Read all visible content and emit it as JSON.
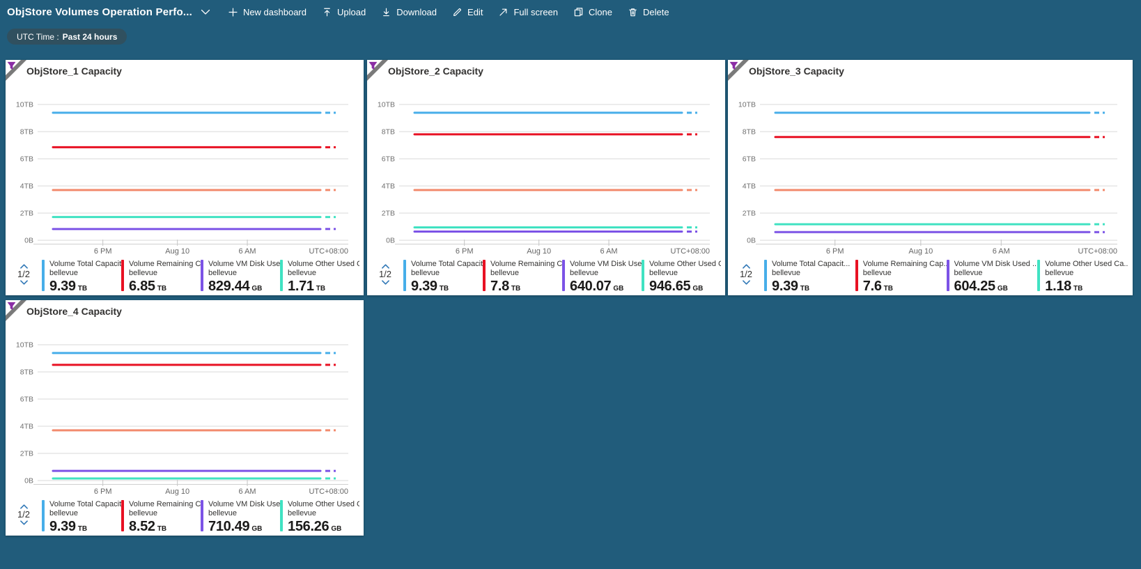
{
  "command_bar": {
    "title": "ObjStore Volumes Operation Perfo...",
    "buttons": [
      {
        "label": "New dashboard",
        "icon": "plus-icon"
      },
      {
        "label": "Upload",
        "icon": "upload-icon"
      },
      {
        "label": "Download",
        "icon": "download-icon"
      },
      {
        "label": "Edit",
        "icon": "edit-icon"
      },
      {
        "label": "Full screen",
        "icon": "fullscreen-icon"
      },
      {
        "label": "Clone",
        "icon": "clone-icon"
      },
      {
        "label": "Delete",
        "icon": "delete-icon"
      }
    ]
  },
  "time_pill": {
    "prefix": "UTC Time :",
    "value": "Past 24 hours"
  },
  "colors": {
    "series_blue": "#47aee9",
    "series_red": "#e81123",
    "series_orange": "#f28b6e",
    "series_teal": "#40e2c2",
    "series_purple": "#7c53e6",
    "pager_chevron": "#3279b7",
    "funnel": "#8a2da5"
  },
  "tiles": [
    {
      "title": "ObjStore_1 Capacity",
      "pager": "1/2",
      "legend": [
        {
          "label": "Volume Total Capacit...",
          "sub": "bellevue",
          "value": "9.39",
          "unit": "TB",
          "color": "#47aee9"
        },
        {
          "label": "Volume Remaining Cap...",
          "sub": "bellevue",
          "value": "6.85",
          "unit": "TB",
          "color": "#e81123"
        },
        {
          "label": "Volume VM Disk Used ...",
          "sub": "bellevue",
          "value": "829.44",
          "unit": "GB",
          "color": "#7c53e6"
        },
        {
          "label": "Volume Other Used Ca...",
          "sub": "bellevue",
          "value": "1.71",
          "unit": "TB",
          "color": "#40e2c2"
        }
      ],
      "chart_data": {
        "type": "line",
        "x_ticks": [
          "6 PM",
          "Aug 10",
          "6 AM"
        ],
        "timezone": "UTC+08:00",
        "y_ticks": [
          "10TB",
          "8TB",
          "6TB",
          "4TB",
          "2TB",
          "0B"
        ],
        "ylim_tb": [
          0,
          10
        ],
        "series": [
          {
            "name": "Volume Total Capacit...",
            "color": "#47aee9",
            "value_tb": 9.39
          },
          {
            "name": "Volume Remaining Cap...",
            "color": "#e81123",
            "value_tb": 6.85
          },
          {
            "name": "",
            "color": "#f28b6e",
            "value_tb": 3.7
          },
          {
            "name": "Volume Other Used Ca...",
            "color": "#40e2c2",
            "value_tb": 1.71
          },
          {
            "name": "Volume VM Disk Used ...",
            "color": "#7c53e6",
            "value_tb": 0.83
          }
        ]
      }
    },
    {
      "title": "ObjStore_2 Capacity",
      "pager": "1/2",
      "legend": [
        {
          "label": "Volume Total Capacit...",
          "sub": "bellevue",
          "value": "9.39",
          "unit": "TB",
          "color": "#47aee9"
        },
        {
          "label": "Volume Remaining Cap...",
          "sub": "bellevue",
          "value": "7.8",
          "unit": "TB",
          "color": "#e81123"
        },
        {
          "label": "Volume VM Disk Used ...",
          "sub": "bellevue",
          "value": "640.07",
          "unit": "GB",
          "color": "#7c53e6"
        },
        {
          "label": "Volume Other Used Ca...",
          "sub": "bellevue",
          "value": "946.65",
          "unit": "GB",
          "color": "#40e2c2"
        }
      ],
      "chart_data": {
        "type": "line",
        "x_ticks": [
          "6 PM",
          "Aug 10",
          "6 AM"
        ],
        "timezone": "UTC+08:00",
        "y_ticks": [
          "10TB",
          "8TB",
          "6TB",
          "4TB",
          "2TB",
          "0B"
        ],
        "ylim_tb": [
          0,
          10
        ],
        "series": [
          {
            "name": "Volume Total Capacit...",
            "color": "#47aee9",
            "value_tb": 9.39
          },
          {
            "name": "Volume Remaining Cap...",
            "color": "#e81123",
            "value_tb": 7.8
          },
          {
            "name": "",
            "color": "#f28b6e",
            "value_tb": 3.7
          },
          {
            "name": "Volume Other Used Ca...",
            "color": "#40e2c2",
            "value_tb": 0.95
          },
          {
            "name": "Volume VM Disk Used ...",
            "color": "#7c53e6",
            "value_tb": 0.64
          }
        ]
      }
    },
    {
      "title": "ObjStore_3 Capacity",
      "pager": "1/2",
      "legend": [
        {
          "label": "Volume Total Capacit...",
          "sub": "bellevue",
          "value": "9.39",
          "unit": "TB",
          "color": "#47aee9"
        },
        {
          "label": "Volume Remaining Cap...",
          "sub": "bellevue",
          "value": "7.6",
          "unit": "TB",
          "color": "#e81123"
        },
        {
          "label": "Volume VM Disk Used ...",
          "sub": "bellevue",
          "value": "604.25",
          "unit": "GB",
          "color": "#7c53e6"
        },
        {
          "label": "Volume Other Used Ca...",
          "sub": "bellevue",
          "value": "1.18",
          "unit": "TB",
          "color": "#40e2c2"
        }
      ],
      "chart_data": {
        "type": "line",
        "x_ticks": [
          "6 PM",
          "Aug 10",
          "6 AM"
        ],
        "timezone": "UTC+08:00",
        "y_ticks": [
          "10TB",
          "8TB",
          "6TB",
          "4TB",
          "2TB",
          "0B"
        ],
        "ylim_tb": [
          0,
          10
        ],
        "series": [
          {
            "name": "Volume Total Capacit...",
            "color": "#47aee9",
            "value_tb": 9.39
          },
          {
            "name": "Volume Remaining Cap...",
            "color": "#e81123",
            "value_tb": 7.6
          },
          {
            "name": "",
            "color": "#f28b6e",
            "value_tb": 3.7
          },
          {
            "name": "Volume Other Used Ca...",
            "color": "#40e2c2",
            "value_tb": 1.18
          },
          {
            "name": "Volume VM Disk Used ...",
            "color": "#7c53e6",
            "value_tb": 0.6
          }
        ]
      }
    },
    {
      "title": "ObjStore_4 Capacity",
      "pager": "1/2",
      "legend": [
        {
          "label": "Volume Total Capacit...",
          "sub": "bellevue",
          "value": "9.39",
          "unit": "TB",
          "color": "#47aee9"
        },
        {
          "label": "Volume Remaining Cap...",
          "sub": "bellevue",
          "value": "8.52",
          "unit": "TB",
          "color": "#e81123"
        },
        {
          "label": "Volume VM Disk Used ...",
          "sub": "bellevue",
          "value": "710.49",
          "unit": "GB",
          "color": "#7c53e6"
        },
        {
          "label": "Volume Other Used Ca...",
          "sub": "bellevue",
          "value": "156.26",
          "unit": "GB",
          "color": "#40e2c2"
        }
      ],
      "chart_data": {
        "type": "line",
        "x_ticks": [
          "6 PM",
          "Aug 10",
          "6 AM"
        ],
        "timezone": "UTC+08:00",
        "y_ticks": [
          "10TB",
          "8TB",
          "6TB",
          "4TB",
          "2TB",
          "0B"
        ],
        "ylim_tb": [
          0,
          10
        ],
        "series": [
          {
            "name": "Volume Total Capacit...",
            "color": "#47aee9",
            "value_tb": 9.39
          },
          {
            "name": "Volume Remaining Cap...",
            "color": "#e81123",
            "value_tb": 8.52
          },
          {
            "name": "",
            "color": "#f28b6e",
            "value_tb": 3.7
          },
          {
            "name": "Volume VM Disk Used ...",
            "color": "#7c53e6",
            "value_tb": 0.71
          },
          {
            "name": "Volume Other Used Ca...",
            "color": "#40e2c2",
            "value_tb": 0.156
          }
        ]
      }
    }
  ]
}
